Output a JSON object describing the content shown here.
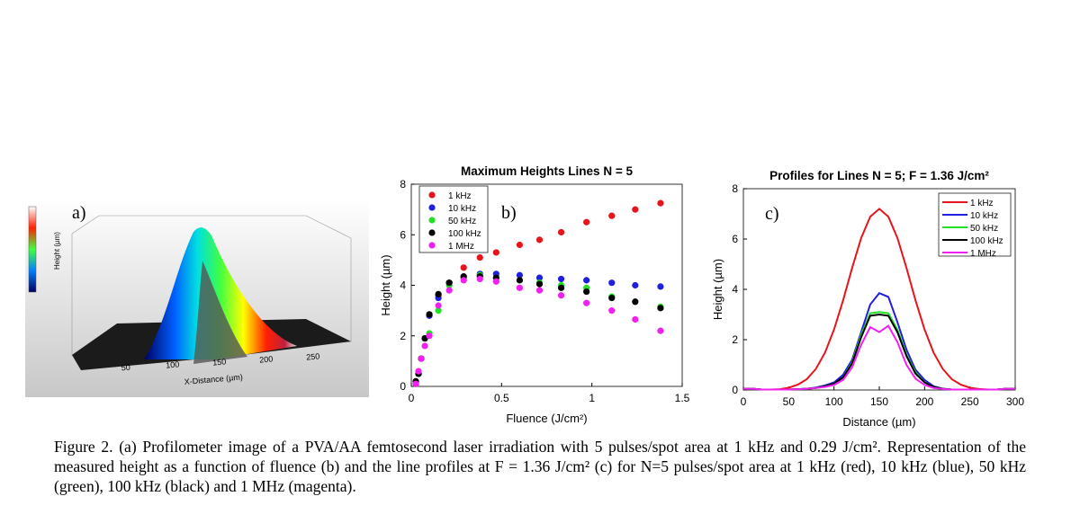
{
  "panel_a": {
    "label": "a)",
    "x_label": "X-Distance (µm)",
    "x_ticks": [
      "50",
      "100",
      "150",
      "200",
      "250"
    ],
    "y_label": "Height (µm)"
  },
  "chart_data": [
    {
      "type": "scatter",
      "title": "Maximum Heights Lines N = 5",
      "annotation": "b)",
      "x_label": "Fluence (J/cm²)",
      "y_label": "Height (µm)",
      "x": [
        0.025,
        0.04,
        0.055,
        0.075,
        0.1,
        0.15,
        0.21,
        0.29,
        0.38,
        0.47,
        0.6,
        0.71,
        0.83,
        0.97,
        1.11,
        1.24,
        1.38
      ],
      "series": [
        {
          "name": "1 kHz",
          "color": "#e8141c",
          "values": [
            0.2,
            0.5,
            1.1,
            1.9,
            2.8,
            3.6,
            4.1,
            4.7,
            5.1,
            5.3,
            5.6,
            5.8,
            6.1,
            6.5,
            6.75,
            7.0,
            7.25
          ]
        },
        {
          "name": "10 kHz",
          "color": "#1f1fe0",
          "values": [
            0.1,
            0.5,
            1.1,
            1.9,
            2.8,
            3.5,
            4.1,
            4.3,
            4.45,
            4.45,
            4.4,
            4.3,
            4.25,
            4.2,
            4.1,
            4.0,
            3.95
          ]
        },
        {
          "name": "50 kHz",
          "color": "#22e022",
          "values": [
            0.1,
            0.5,
            1.1,
            1.9,
            2.1,
            3.0,
            4.0,
            4.3,
            4.4,
            4.3,
            4.2,
            4.1,
            4.0,
            3.9,
            3.55,
            3.35,
            3.15
          ]
        },
        {
          "name": "100 kHz",
          "color": "#000000",
          "values": [
            0.2,
            0.5,
            1.1,
            1.9,
            2.85,
            3.65,
            4.1,
            4.35,
            4.35,
            4.3,
            4.2,
            4.05,
            3.9,
            3.75,
            3.5,
            3.35,
            3.1
          ]
        },
        {
          "name": "1 MHz",
          "color": "#f020f0",
          "values": [
            0.1,
            0.6,
            1.1,
            1.6,
            2.0,
            3.2,
            3.8,
            4.2,
            4.25,
            4.15,
            3.9,
            3.8,
            3.6,
            3.3,
            3.0,
            2.65,
            2.2
          ]
        }
      ],
      "xlim": [
        0,
        1.5
      ],
      "xticks": [
        0,
        0.5,
        1,
        1.5
      ],
      "ylim": [
        0,
        8
      ],
      "yticks": [
        0,
        2,
        4,
        6,
        8
      ],
      "legend": "upper left"
    },
    {
      "type": "line",
      "title": "Profiles for Lines N = 5; F = 1.36 J/cm²",
      "annotation": "c)",
      "x_label": "Distance (µm)",
      "y_label": "Height (µm)",
      "x": [
        0,
        10,
        20,
        30,
        40,
        50,
        60,
        70,
        80,
        90,
        100,
        110,
        120,
        130,
        140,
        150,
        160,
        170,
        180,
        190,
        200,
        210,
        220,
        230,
        240,
        250,
        260,
        270,
        280,
        290,
        300
      ],
      "series": [
        {
          "name": "1 kHz",
          "color": "#e8141c",
          "values": [
            0.05,
            0.05,
            0.02,
            0.02,
            0.03,
            0.09,
            0.21,
            0.43,
            0.84,
            1.48,
            2.4,
            3.56,
            4.85,
            6.04,
            6.89,
            7.2,
            6.89,
            6.04,
            4.85,
            3.56,
            2.4,
            1.48,
            0.84,
            0.43,
            0.21,
            0.09,
            0.04,
            0.02,
            0.02,
            0.05,
            0.05
          ]
        },
        {
          "name": "10 kHz",
          "color": "#1f1fe0",
          "values": [
            0.05,
            0.05,
            0.02,
            0.02,
            0.02,
            0.02,
            0.03,
            0.05,
            0.1,
            0.18,
            0.3,
            0.6,
            1.2,
            2.3,
            3.4,
            3.85,
            3.7,
            2.7,
            1.6,
            0.8,
            0.4,
            0.15,
            0.05,
            0.02,
            0.02,
            0.02,
            0.02,
            0.02,
            0.02,
            0.05,
            0.05
          ]
        },
        {
          "name": "50 kHz",
          "color": "#22e022",
          "values": [
            0.05,
            0.05,
            0.02,
            0.02,
            0.02,
            0.02,
            0.03,
            0.05,
            0.08,
            0.15,
            0.25,
            0.5,
            1.1,
            2.2,
            3.05,
            3.1,
            3.05,
            2.4,
            1.4,
            0.7,
            0.3,
            0.12,
            0.05,
            0.02,
            0.02,
            0.02,
            0.02,
            0.02,
            0.02,
            0.05,
            0.05
          ]
        },
        {
          "name": "100 kHz",
          "color": "#000000",
          "values": [
            0.05,
            0.05,
            0.02,
            0.02,
            0.02,
            0.02,
            0.03,
            0.05,
            0.08,
            0.15,
            0.25,
            0.5,
            1.05,
            2.1,
            2.95,
            3.0,
            2.95,
            2.3,
            1.35,
            0.65,
            0.3,
            0.12,
            0.05,
            0.02,
            0.02,
            0.02,
            0.02,
            0.02,
            0.02,
            0.05,
            0.05
          ]
        },
        {
          "name": "1 MHz",
          "color": "#f020f0",
          "values": [
            0.05,
            0.05,
            0.02,
            0.02,
            0.02,
            0.02,
            0.03,
            0.05,
            0.08,
            0.12,
            0.2,
            0.4,
            0.9,
            1.8,
            2.5,
            2.3,
            2.55,
            1.9,
            1.0,
            0.45,
            0.2,
            0.08,
            0.04,
            0.02,
            0.02,
            0.02,
            0.02,
            0.02,
            0.02,
            0.05,
            0.05
          ]
        }
      ],
      "xlim": [
        0,
        300
      ],
      "xticks": [
        0,
        50,
        100,
        150,
        200,
        250,
        300
      ],
      "ylim": [
        0,
        8
      ],
      "yticks": [
        0,
        2,
        4,
        6,
        8
      ],
      "legend": "upper right"
    }
  ],
  "caption": "Figure 2. (a) Profilometer image of a PVA/AA femtosecond laser irradiation with 5 pulses/spot area at 1 kHz and 0.29 J/cm². Representation of the measured height as a function of fluence (b) and the line profiles at F = 1.36 J/cm² (c) for N=5 pulses/spot area at 1 kHz (red), 10 kHz (blue), 50 kHz (green), 100 kHz (black) and 1 MHz (magenta)."
}
